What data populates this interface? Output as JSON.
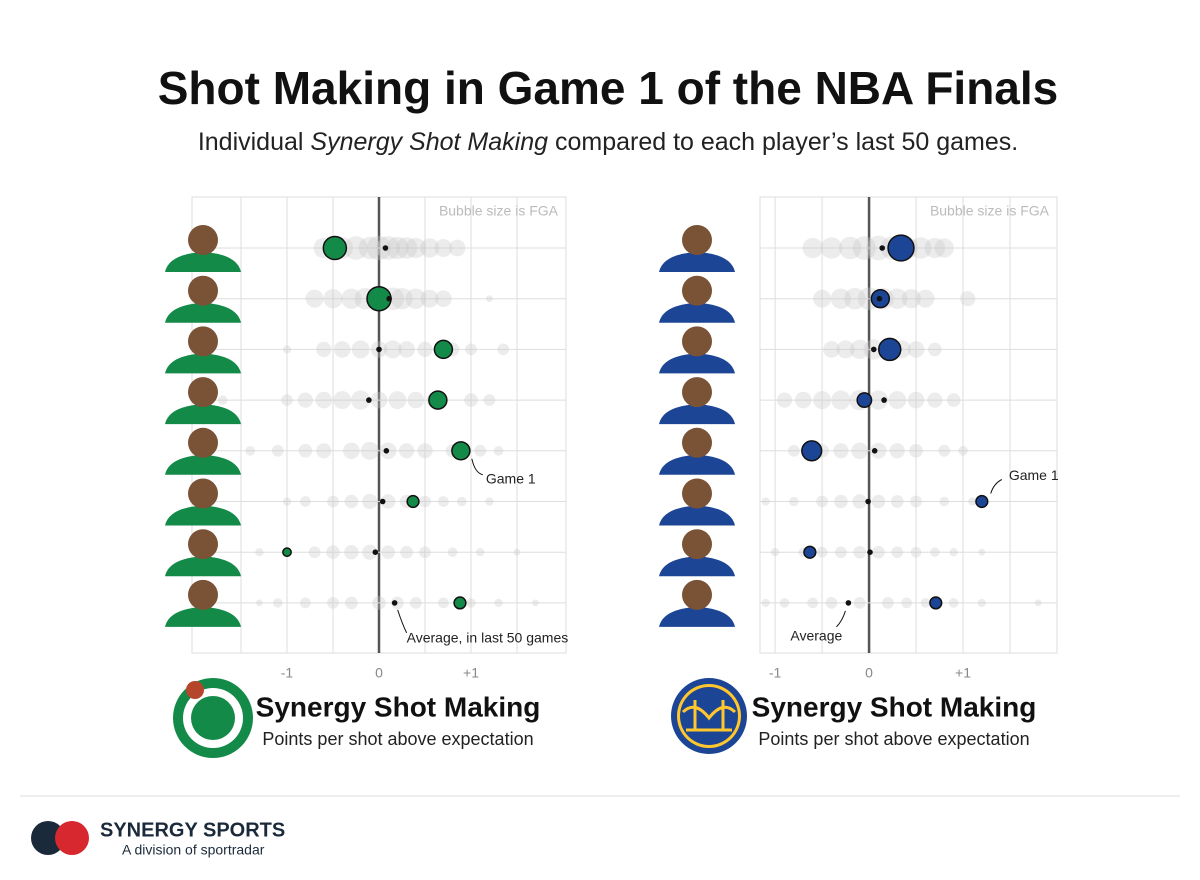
{
  "title": "Shot Making in Game 1 of the NBA Finals",
  "subtitle_pre": "Individual ",
  "subtitle_em": "Synergy Shot Making",
  "subtitle_post": " compared to each player’s last 50 games.",
  "footer": {
    "brand": "SYNERGY SPORTS",
    "tagline": "A division of sportradar"
  },
  "chart_data": [
    {
      "type": "bubble",
      "size_note": "Bubble size is FGA",
      "xlabel": "Synergy Shot Making",
      "xlabel_sub": "Points per shot above expectation",
      "game1_label": "Game 1",
      "average_label": "Average, in last 50 games",
      "categories": [
        null,
        null,
        null,
        null,
        null,
        null,
        null,
        null
      ],
      "xlim": [
        -2,
        2
      ],
      "xticks": [
        -1,
        0,
        {
          "value": 1,
          "label": "+1"
        }
      ],
      "xgrid": [
        -1.5,
        -1,
        -0.5,
        0,
        0.5,
        1,
        1.5
      ],
      "game1": {
        "color": "#138a48",
        "x": [
          -0.48,
          0.0,
          0.7,
          0.64,
          0.89,
          0.37,
          -1.0,
          0.88
        ],
        "fga": [
          23,
          25,
          14,
          14,
          14,
          6,
          3,
          6
        ]
      },
      "average": {
        "x": [
          0.07,
          0.11,
          0.0,
          -0.11,
          0.08,
          0.04,
          -0.04,
          0.17
        ]
      },
      "history": [
        {
          "x": [
            -0.6,
            -0.4,
            -0.25,
            -0.1,
            0.0,
            0.1,
            0.2,
            0.3,
            0.4,
            0.55,
            0.7,
            0.85
          ],
          "fga": [
            18,
            20,
            24,
            22,
            26,
            24,
            22,
            20,
            18,
            16,
            14,
            12
          ]
        },
        {
          "x": [
            -0.7,
            -0.5,
            -0.3,
            -0.15,
            0.0,
            0.15,
            0.25,
            0.4,
            0.55,
            0.7,
            1.2
          ],
          "fga": [
            14,
            16,
            18,
            20,
            24,
            22,
            20,
            18,
            14,
            12,
            2
          ]
        },
        {
          "x": [
            -1.0,
            -0.6,
            -0.4,
            -0.2,
            0.0,
            0.15,
            0.3,
            0.5,
            0.8,
            1.0,
            1.35
          ],
          "fga": [
            3,
            10,
            12,
            14,
            12,
            14,
            12,
            10,
            8,
            6,
            6
          ]
        },
        {
          "x": [
            -1.7,
            -1.0,
            -0.8,
            -0.6,
            -0.4,
            -0.2,
            0.0,
            0.2,
            0.4,
            0.6,
            1.0,
            1.2
          ],
          "fga": [
            4,
            6,
            10,
            12,
            14,
            16,
            12,
            14,
            12,
            10,
            8,
            6
          ]
        },
        {
          "x": [
            -1.4,
            -1.1,
            -0.8,
            -0.6,
            -0.3,
            -0.1,
            0.1,
            0.3,
            0.5,
            0.8,
            1.1,
            1.3
          ],
          "fga": [
            4,
            6,
            8,
            10,
            12,
            14,
            12,
            10,
            10,
            8,
            6,
            4
          ]
        },
        {
          "x": [
            -1.0,
            -0.8,
            -0.5,
            -0.3,
            -0.1,
            0.1,
            0.3,
            0.5,
            0.7,
            0.9,
            1.2
          ],
          "fga": [
            3,
            5,
            6,
            8,
            10,
            9,
            8,
            6,
            5,
            4,
            3
          ]
        },
        {
          "x": [
            -1.3,
            -1.0,
            -0.7,
            -0.5,
            -0.3,
            -0.1,
            0.1,
            0.3,
            0.5,
            0.8,
            1.1,
            1.5
          ],
          "fga": [
            3,
            4,
            6,
            8,
            9,
            10,
            8,
            7,
            6,
            4,
            3,
            2
          ]
        },
        {
          "x": [
            -1.3,
            -1.1,
            -0.8,
            -0.5,
            -0.3,
            0.0,
            0.2,
            0.4,
            0.7,
            1.0,
            1.3,
            1.7
          ],
          "fga": [
            2,
            4,
            5,
            6,
            7,
            8,
            7,
            6,
            5,
            4,
            3,
            2
          ]
        }
      ]
    },
    {
      "type": "bubble",
      "size_note": "Bubble size is FGA",
      "xlabel": "Synergy Shot Making",
      "xlabel_sub": "Points per shot above expectation",
      "game1_label": "Game 1",
      "average_label": "Average",
      "categories": [
        null,
        null,
        null,
        null,
        null,
        null,
        null,
        null
      ],
      "xlim": [
        -1.15,
        2
      ],
      "xticks": [
        -1,
        0,
        {
          "value": 1,
          "label": "+1"
        }
      ],
      "xgrid": [
        -1,
        -0.5,
        0,
        0.5,
        1,
        1.5
      ],
      "game1": {
        "color": "#1d4596",
        "x": [
          0.34,
          0.12,
          0.22,
          -0.05,
          -0.61,
          1.2,
          -0.63,
          0.71
        ],
        "fga": [
          29,
          14,
          21,
          9,
          17,
          6,
          6,
          6
        ]
      },
      "average": {
        "x": [
          0.14,
          0.11,
          0.05,
          0.16,
          0.06,
          -0.01,
          0.01,
          -0.22
        ]
      },
      "history": [
        {
          "x": [
            -0.6,
            -0.4,
            -0.2,
            -0.05,
            0.1,
            0.25,
            0.4,
            0.55,
            0.7,
            0.8
          ],
          "fga": [
            18,
            20,
            22,
            24,
            26,
            24,
            22,
            20,
            18,
            16
          ]
        },
        {
          "x": [
            -0.5,
            -0.3,
            -0.15,
            0.0,
            0.15,
            0.3,
            0.45,
            0.6,
            1.05
          ],
          "fga": [
            14,
            18,
            20,
            22,
            20,
            18,
            16,
            14,
            10
          ]
        },
        {
          "x": [
            -0.4,
            -0.25,
            -0.1,
            0.05,
            0.2,
            0.35,
            0.5,
            0.7
          ],
          "fga": [
            12,
            14,
            16,
            18,
            16,
            14,
            12,
            8
          ]
        },
        {
          "x": [
            -0.9,
            -0.7,
            -0.5,
            -0.3,
            -0.1,
            0.1,
            0.3,
            0.5,
            0.7,
            0.9
          ],
          "fga": [
            10,
            12,
            14,
            16,
            18,
            16,
            14,
            12,
            10,
            8
          ]
        },
        {
          "x": [
            -0.8,
            -0.5,
            -0.3,
            -0.1,
            0.1,
            0.3,
            0.5,
            0.8,
            1.0
          ],
          "fga": [
            6,
            8,
            10,
            12,
            11,
            10,
            8,
            6,
            4
          ]
        },
        {
          "x": [
            -1.1,
            -0.8,
            -0.5,
            -0.3,
            -0.1,
            0.1,
            0.3,
            0.5,
            0.8,
            1.1
          ],
          "fga": [
            3,
            4,
            6,
            8,
            9,
            8,
            7,
            6,
            4,
            3
          ]
        },
        {
          "x": [
            -1.0,
            -0.7,
            -0.5,
            -0.3,
            -0.1,
            0.1,
            0.3,
            0.5,
            0.7,
            0.9,
            1.2
          ],
          "fga": [
            3,
            4,
            5,
            6,
            7,
            7,
            6,
            5,
            4,
            3,
            2
          ]
        },
        {
          "x": [
            -1.1,
            -0.9,
            -0.6,
            -0.4,
            -0.1,
            0.2,
            0.4,
            0.6,
            0.9,
            1.2,
            1.8
          ],
          "fga": [
            3,
            4,
            5,
            6,
            6,
            6,
            5,
            4,
            4,
            3,
            2
          ]
        }
      ]
    }
  ]
}
